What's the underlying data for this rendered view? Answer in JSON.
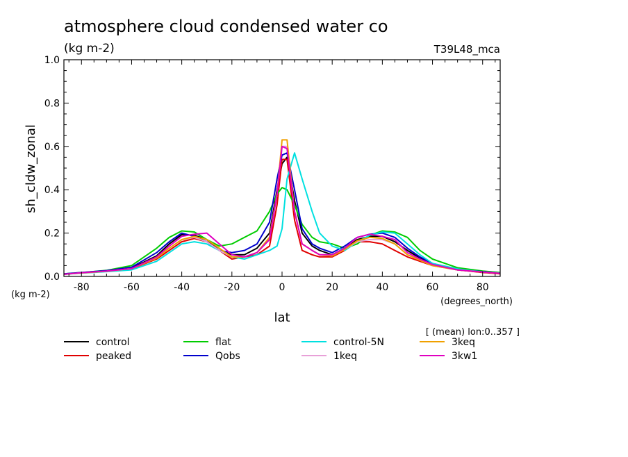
{
  "chart_data": {
    "type": "line",
    "title": "atmosphere cloud condensed water co",
    "subtitle": "(kg m-2)",
    "run_label": "T39L48_mca",
    "ylabel": "sh_cldw_zonal",
    "y_units": "(kg m-2)",
    "xlabel": "lat",
    "x_units": "(degrees_north)",
    "averaging_note": "[ (mean) lon:0..357 ]",
    "xlim": [
      -87,
      87
    ],
    "ylim": [
      0.0,
      1.0
    ],
    "x_ticks": [
      -80,
      -60,
      -40,
      -20,
      0,
      20,
      40,
      60,
      80
    ],
    "x_tick_labels": [
      "-80",
      "-60",
      "-40",
      "-20",
      "0",
      "20",
      "40",
      "60",
      "80"
    ],
    "y_ticks": [
      0.0,
      0.2,
      0.4,
      0.6,
      0.8,
      1.0
    ],
    "y_tick_labels": [
      "0.0",
      "0.2",
      "0.4",
      "0.6",
      "0.8",
      "1.0"
    ],
    "grid": false,
    "legend_position": "bottom",
    "x": [
      -87,
      -80,
      -70,
      -60,
      -50,
      -45,
      -40,
      -35,
      -30,
      -25,
      -20,
      -15,
      -10,
      -5,
      -2,
      0,
      2,
      5,
      8,
      12,
      15,
      20,
      25,
      30,
      35,
      40,
      45,
      50,
      55,
      60,
      70,
      80,
      87
    ],
    "series": [
      {
        "name": "control",
        "color": "#000000",
        "values": [
          0.01,
          0.017,
          0.025,
          0.038,
          0.095,
          0.15,
          0.193,
          0.19,
          0.17,
          0.12,
          0.1,
          0.1,
          0.13,
          0.2,
          0.4,
          0.52,
          0.55,
          0.35,
          0.2,
          0.14,
          0.12,
          0.1,
          0.13,
          0.17,
          0.185,
          0.185,
          0.16,
          0.12,
          0.085,
          0.055,
          0.03,
          0.02,
          0.015
        ]
      },
      {
        "name": "peaked",
        "color": "#e00000",
        "values": [
          0.01,
          0.017,
          0.025,
          0.035,
          0.08,
          0.12,
          0.16,
          0.175,
          0.16,
          0.12,
          0.08,
          0.09,
          0.1,
          0.14,
          0.33,
          0.54,
          0.54,
          0.26,
          0.12,
          0.1,
          0.09,
          0.09,
          0.12,
          0.16,
          0.16,
          0.15,
          0.12,
          0.09,
          0.07,
          0.05,
          0.03,
          0.018,
          0.012
        ]
      },
      {
        "name": "flat",
        "color": "#00cc00",
        "values": [
          0.012,
          0.018,
          0.028,
          0.05,
          0.13,
          0.18,
          0.21,
          0.205,
          0.17,
          0.14,
          0.15,
          0.18,
          0.21,
          0.3,
          0.38,
          0.41,
          0.4,
          0.33,
          0.24,
          0.18,
          0.16,
          0.15,
          0.13,
          0.15,
          0.19,
          0.21,
          0.205,
          0.18,
          0.12,
          0.08,
          0.04,
          0.025,
          0.018
        ]
      },
      {
        "name": "Qobs",
        "color": "#0000cc",
        "values": [
          0.012,
          0.018,
          0.027,
          0.042,
          0.11,
          0.16,
          0.2,
          0.185,
          0.16,
          0.12,
          0.11,
          0.12,
          0.15,
          0.25,
          0.45,
          0.56,
          0.57,
          0.4,
          0.22,
          0.15,
          0.13,
          0.11,
          0.14,
          0.18,
          0.195,
          0.2,
          0.18,
          0.13,
          0.09,
          0.06,
          0.032,
          0.022,
          0.015
        ]
      },
      {
        "name": "control-5N",
        "color": "#00e0e0",
        "values": [
          0.01,
          0.015,
          0.022,
          0.03,
          0.07,
          0.11,
          0.15,
          0.16,
          0.15,
          0.12,
          0.09,
          0.08,
          0.1,
          0.12,
          0.14,
          0.22,
          0.45,
          0.57,
          0.45,
          0.3,
          0.2,
          0.14,
          0.12,
          0.16,
          0.19,
          0.205,
          0.2,
          0.15,
          0.1,
          0.06,
          0.035,
          0.02,
          0.015
        ]
      },
      {
        "name": "1keq",
        "color": "#e8a0d8",
        "values": [
          0.01,
          0.016,
          0.024,
          0.036,
          0.085,
          0.13,
          0.17,
          0.18,
          0.16,
          0.12,
          0.09,
          0.09,
          0.11,
          0.18,
          0.38,
          0.6,
          0.6,
          0.3,
          0.15,
          0.12,
          0.1,
          0.095,
          0.125,
          0.16,
          0.17,
          0.17,
          0.15,
          0.1,
          0.075,
          0.05,
          0.03,
          0.02,
          0.014
        ]
      },
      {
        "name": "3keq",
        "color": "#f0a000",
        "values": [
          0.01,
          0.016,
          0.024,
          0.036,
          0.085,
          0.13,
          0.17,
          0.185,
          0.17,
          0.13,
          0.09,
          0.09,
          0.11,
          0.18,
          0.38,
          0.63,
          0.63,
          0.3,
          0.15,
          0.12,
          0.1,
          0.095,
          0.125,
          0.165,
          0.18,
          0.175,
          0.15,
          0.1,
          0.075,
          0.05,
          0.03,
          0.02,
          0.014
        ]
      },
      {
        "name": "3kw1",
        "color": "#e000c0",
        "values": [
          0.01,
          0.017,
          0.025,
          0.036,
          0.09,
          0.14,
          0.185,
          0.195,
          0.2,
          0.15,
          0.1,
          0.09,
          0.11,
          0.17,
          0.38,
          0.6,
          0.59,
          0.3,
          0.15,
          0.12,
          0.1,
          0.1,
          0.13,
          0.18,
          0.195,
          0.185,
          0.17,
          0.11,
          0.08,
          0.055,
          0.03,
          0.02,
          0.014
        ]
      }
    ]
  }
}
